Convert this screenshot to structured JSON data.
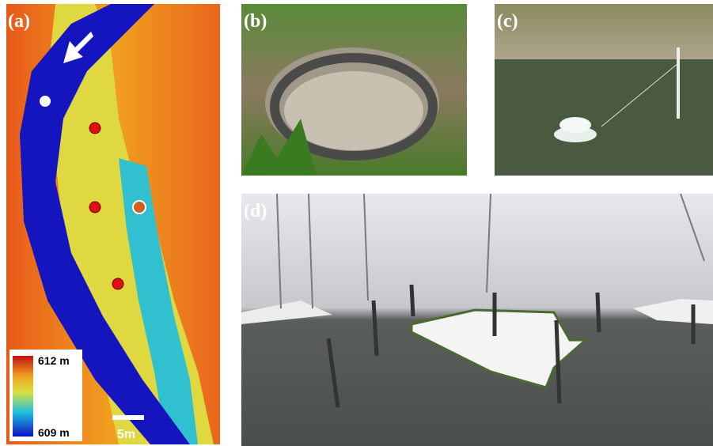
{
  "panels": {
    "a": {
      "label": "(a)",
      "colorbar": {
        "top_label": "612 m",
        "bottom_label": "609 m"
      },
      "scale_bar": "5m"
    },
    "b": {
      "label": "(b)"
    },
    "c": {
      "label": "(c)"
    },
    "d": {
      "label": "(d)"
    }
  }
}
